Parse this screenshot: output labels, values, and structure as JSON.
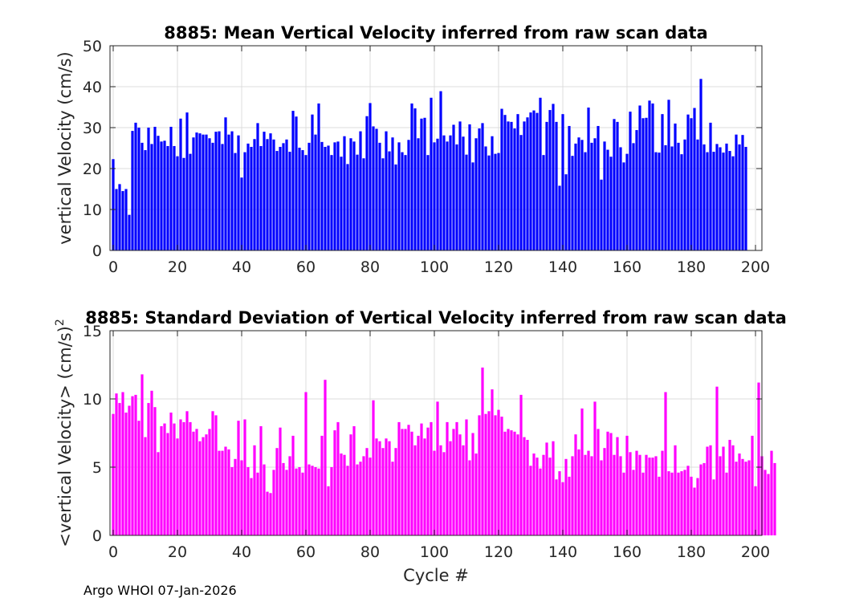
{
  "footer": {
    "credit": "Argo WHOI 07-Jan-2026"
  },
  "chart_data": [
    {
      "type": "bar",
      "title": "8885: Mean Vertical Velocity inferred from raw scan data",
      "xlabel": "",
      "ylabel": "vertical Velocity (cm/s)",
      "xlim": [
        -1,
        202
      ],
      "ylim": [
        0,
        50
      ],
      "xticks": [
        0,
        20,
        40,
        60,
        80,
        100,
        120,
        140,
        160,
        180,
        200
      ],
      "yticks": [
        0,
        10,
        20,
        30,
        40,
        50
      ],
      "color": "#0000ff",
      "x_start": 0,
      "values": [
        22.3,
        15,
        16.2,
        14.5,
        15,
        8.7,
        29.2,
        31.2,
        30,
        26.3,
        24.5,
        30,
        26,
        30.2,
        28,
        26.6,
        26.8,
        25.5,
        30.2,
        25.5,
        23,
        32.2,
        22.6,
        33.7,
        23.6,
        27.6,
        28.8,
        28.6,
        28.3,
        28.3,
        27.4,
        26.3,
        29,
        29.1,
        26,
        32.5,
        28.3,
        29.1,
        23.8,
        28.1,
        17.8,
        24,
        26.1,
        25.3,
        27.2,
        31.1,
        25.5,
        29,
        27.2,
        28.6,
        27.1,
        24.3,
        25.3,
        26.2,
        27.1,
        24.1,
        34.1,
        32.7,
        25.1,
        24.5,
        23.3,
        26.3,
        33.2,
        28.3,
        35.9,
        26.5,
        25.3,
        25.6,
        23.3,
        26.4,
        26.6,
        22.9,
        27.9,
        21.1,
        27.4,
        26.6,
        23.4,
        29.1,
        22.5,
        32.8,
        36,
        30.3,
        29.7,
        26.3,
        22.5,
        29.1,
        24.2,
        27.6,
        21,
        26.4,
        24,
        23.3,
        27,
        35.9,
        34.7,
        27.4,
        32.2,
        32.4,
        23.3,
        37.3,
        26.4,
        27.3,
        38.9,
        28.1,
        26.6,
        28.1,
        30.7,
        25.9,
        31.5,
        27.8,
        23.4,
        30.8,
        21.5,
        27.4,
        29.8,
        31.1,
        25.4,
        23.2,
        27.9,
        23.6,
        23.8,
        34.6,
        33.1,
        31.5,
        31.4,
        29.8,
        33.3,
        28.2,
        31.5,
        32.5,
        33.7,
        34.2,
        33.6,
        37.3,
        23.3,
        31.4,
        34.3,
        35.8,
        31.4,
        15.8,
        33.3,
        18.6,
        30.4,
        23.1,
        26.1,
        27.6,
        27,
        24,
        34.9,
        26.3,
        27.4,
        30.4,
        17.3,
        26.6,
        24.6,
        22.9,
        32.1,
        31.4,
        25.2,
        21.5,
        23.6,
        33.9,
        26.2,
        29.4,
        35.4,
        32.3,
        32.4,
        36.6,
        35.9,
        24,
        23.9,
        33.3,
        25.7,
        36.8,
        25.4,
        31,
        26.3,
        23.5,
        27.1,
        33.2,
        32.3,
        34.8,
        27.1,
        41.9,
        25.9,
        24,
        31.2,
        24.1,
        26,
        25.2,
        23.9,
        26.1,
        24.3,
        23,
        28.3,
        25.9,
        28.2,
        25.3
      ]
    },
    {
      "type": "bar",
      "title": "8885: Standard Deviation of Vertical Velocity inferred from raw scan data",
      "xlabel": "Cycle #",
      "ylabel": "<vertical Velocity> (cm/s)",
      "ylabel_superscript": "2",
      "xlim": [
        -1,
        202
      ],
      "ylim": [
        0,
        15
      ],
      "xticks": [
        0,
        20,
        40,
        60,
        80,
        100,
        120,
        140,
        160,
        180,
        200
      ],
      "yticks": [
        0,
        5,
        10,
        15
      ],
      "color": "#ff00ff",
      "x_start": 0,
      "values": [
        8.9,
        10.4,
        9.7,
        10.5,
        9,
        9.5,
        10.2,
        10.3,
        8.4,
        11.8,
        7.2,
        9.7,
        10.6,
        9.4,
        6.1,
        8,
        8.2,
        7.5,
        9,
        8.2,
        7.1,
        8.5,
        8.3,
        9.1,
        8.3,
        7.6,
        7.8,
        6.9,
        7.2,
        7.4,
        7.8,
        9.1,
        8.8,
        6.2,
        6.2,
        6.5,
        6.3,
        5,
        5.6,
        8.4,
        5.5,
        8.5,
        5,
        4.2,
        6.6,
        4.6,
        8,
        5.2,
        3.2,
        3.1,
        4.8,
        6.4,
        7.9,
        5.3,
        4.8,
        5.8,
        7.3,
        4.9,
        5,
        4.6,
        10.5,
        5.2,
        5.1,
        5,
        4.9,
        7.3,
        11.4,
        3.6,
        5,
        7.7,
        8.3,
        6,
        5.9,
        5.1,
        7.4,
        8,
        5.2,
        5.4,
        5.8,
        6.4,
        5.7,
        9.9,
        7.1,
        6.9,
        6.4,
        7.1,
        6.9,
        5.4,
        6.4,
        8.3,
        7.8,
        7.8,
        8.1,
        7.6,
        6.6,
        7.3,
        8.2,
        7.1,
        7.9,
        8.3,
        6.2,
        9.8,
        6.6,
        6.1,
        8.3,
        6.9,
        7.8,
        8.3,
        7.4,
        6.6,
        8.5,
        5.5,
        7.5,
        6,
        8.8,
        12.3,
        8.9,
        9.1,
        10.7,
        8.8,
        9.2,
        8.7,
        7.6,
        7.8,
        7.7,
        7.6,
        7.4,
        10.3,
        7.2,
        7,
        5.1,
        6,
        5.7,
        4.9,
        5.9,
        6.8,
        5.7,
        6.9,
        4.1,
        4.7,
        3.9,
        5.6,
        4.3,
        5.8,
        7.4,
        6.3,
        9.3,
        5.9,
        6.2,
        5.8,
        9.8,
        7.8,
        5.5,
        6.4,
        7.6,
        7.5,
        5.9,
        7.2,
        5.8,
        4.6,
        7.3,
        6.1,
        4.8,
        6.2,
        5.9,
        4.6,
        5.9,
        5.7,
        5.7,
        5.8,
        4.3,
        6.2,
        10.5,
        4.7,
        4.6,
        6.6,
        4.6,
        4.7,
        4.8,
        5.1,
        4.3,
        3.5,
        4.2,
        5.2,
        5.3,
        6.5,
        6.6,
        4.1,
        10.9,
        5.8,
        6.5,
        4.6,
        7,
        6.6,
        5.4,
        6,
        5.6,
        5.4,
        5.5,
        7.3,
        3.6,
        11.2,
        5.8,
        4.8,
        4.5,
        6.2,
        5.3
      ]
    }
  ]
}
